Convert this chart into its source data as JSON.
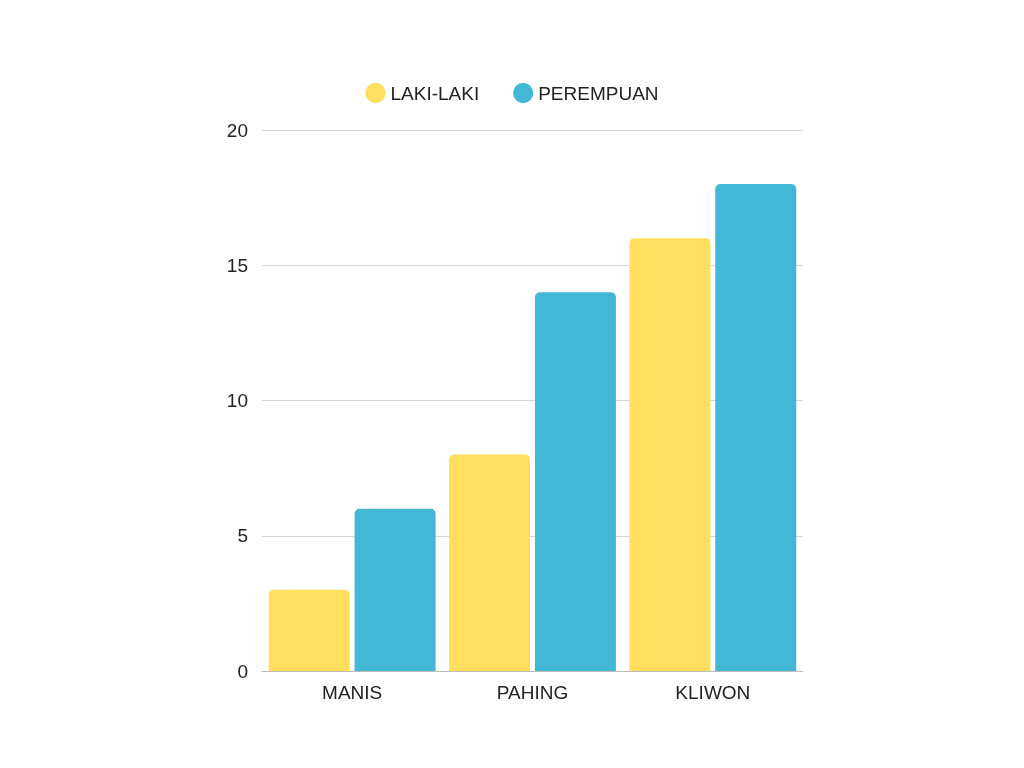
{
  "chart_data": {
    "type": "bar",
    "categories": [
      "MANIS",
      "PAHING",
      "KLIWON"
    ],
    "series": [
      {
        "name": "LAKI-LAKI",
        "color": "#ffdf5d",
        "values": [
          3,
          8,
          16
        ]
      },
      {
        "name": "PEREMPUAN",
        "color": "#42b8d6",
        "values": [
          6,
          14,
          18
        ]
      }
    ],
    "ylim": [
      0,
      20
    ],
    "yticks": [
      0,
      5,
      10,
      15,
      20
    ],
    "grid": "y",
    "legend": "top"
  }
}
